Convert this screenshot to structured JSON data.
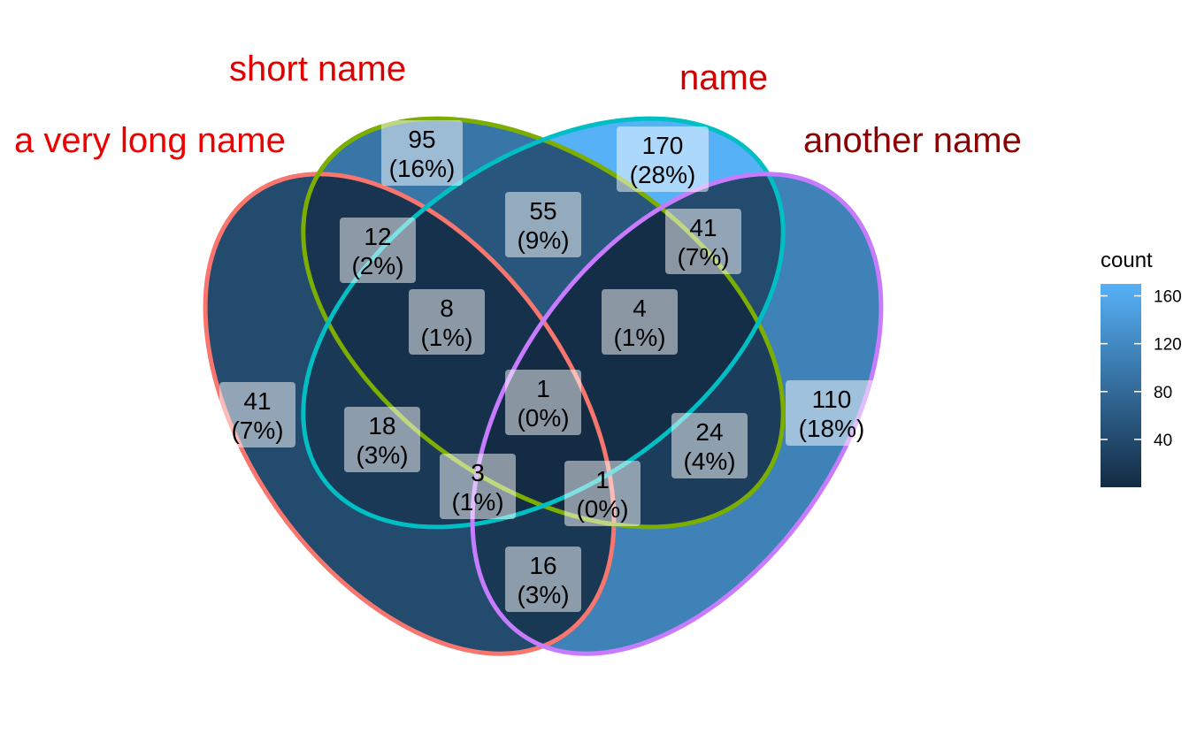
{
  "chart_data": {
    "type": "venn",
    "sets": [
      {
        "name": "a very long name",
        "count": 41,
        "percent": "7%",
        "outline": "#F8766D",
        "label_color": "#EE0000"
      },
      {
        "name": "short name",
        "count": 95,
        "percent": "16%",
        "outline": "#7CAE00",
        "label_color": "#DD0000"
      },
      {
        "name": "name",
        "count": 170,
        "percent": "28%",
        "outline": "#00BFC4",
        "label_color": "#CC0000"
      },
      {
        "name": "another name",
        "count": 110,
        "percent": "18%",
        "outline": "#C77CFF",
        "label_color": "#8B0000"
      }
    ],
    "regions": [
      {
        "sets": [
          "a very long name"
        ],
        "count": 41,
        "percent": "7%"
      },
      {
        "sets": [
          "short name"
        ],
        "count": 95,
        "percent": "16%"
      },
      {
        "sets": [
          "name"
        ],
        "count": 170,
        "percent": "28%"
      },
      {
        "sets": [
          "another name"
        ],
        "count": 110,
        "percent": "18%"
      },
      {
        "sets": [
          "a very long name",
          "short name"
        ],
        "count": 12,
        "percent": "2%"
      },
      {
        "sets": [
          "short name",
          "name"
        ],
        "count": 55,
        "percent": "9%"
      },
      {
        "sets": [
          "name",
          "another name"
        ],
        "count": 41,
        "percent": "7%"
      },
      {
        "sets": [
          "a very long name",
          "short name",
          "name"
        ],
        "count": 8,
        "percent": "1%"
      },
      {
        "sets": [
          "short name",
          "name",
          "another name"
        ],
        "count": 4,
        "percent": "1%"
      },
      {
        "sets": [
          "a very long name",
          "short name",
          "name",
          "another name"
        ],
        "count": 1,
        "percent": "0%"
      },
      {
        "sets": [
          "a very long name",
          "name"
        ],
        "count": 18,
        "percent": "3%"
      },
      {
        "sets": [
          "short name",
          "another name"
        ],
        "count": 24,
        "percent": "4%"
      },
      {
        "sets": [
          "a very long name",
          "name",
          "another name"
        ],
        "count": 3,
        "percent": "1%"
      },
      {
        "sets": [
          "a very long name",
          "short name",
          "another name"
        ],
        "count": 1,
        "percent": "0%"
      },
      {
        "sets": [
          "a very long name",
          "another name"
        ],
        "count": 16,
        "percent": "3%"
      }
    ],
    "legend": {
      "title": "count",
      "ticks": [
        40,
        80,
        120,
        160
      ],
      "range": [
        0,
        170
      ],
      "low_color": "#132B43",
      "high_color": "#56B1F7",
      "placement": "right"
    }
  }
}
